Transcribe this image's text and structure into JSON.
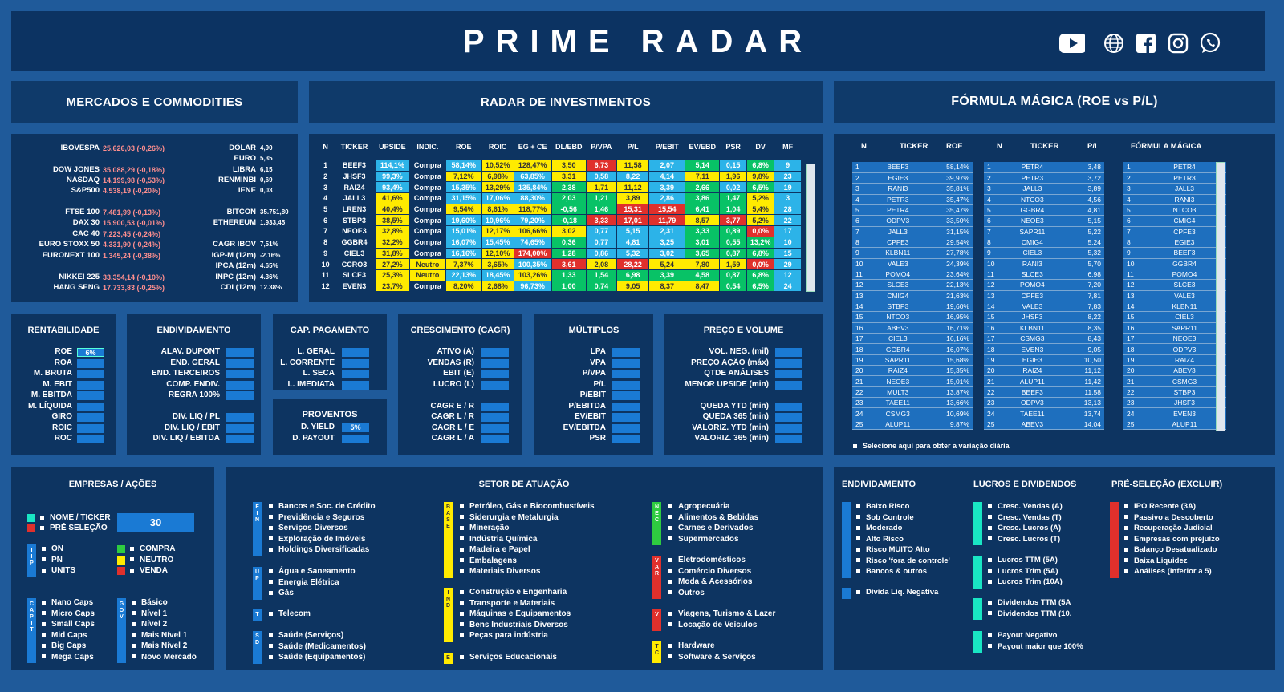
{
  "app_title": "PRIME RADAR",
  "social": [
    "youtube-icon",
    "globe-icon",
    "facebook-icon",
    "instagram-icon",
    "whatsapp-icon"
  ],
  "mercados": {
    "title": "MERCADOS E COMMODITIES",
    "indices": [
      {
        "name": "IBOVESPA",
        "val": "25.626,03 (-0,26%)"
      },
      {
        "name": "DOW JONES",
        "val": "35.088,29 (-0,18%)"
      },
      {
        "name": "NASDAQ",
        "val": "14.199,98 (-0,53%)"
      },
      {
        "name": "S&P500",
        "val": "4.538,19 (-0,20%)"
      },
      {
        "name": "FTSE 100",
        "val": "7.481,99 (-0,13%)"
      },
      {
        "name": "DAX 30",
        "val": "15.900,53 (-0,01%)"
      },
      {
        "name": "CAC 40",
        "val": "7.223,45 (-0,24%)"
      },
      {
        "name": "EURO STOXX 50",
        "val": "4.331,90 (-0,24%)"
      },
      {
        "name": "EURONEXT 100",
        "val": "1.345,24 (-0,38%)"
      },
      {
        "name": "NIKKEI 225",
        "val": "33.354,14 (-0,10%)"
      },
      {
        "name": "HANG SENG",
        "val": "17.733,83 (-0,25%)"
      }
    ],
    "rates": [
      {
        "name": "DÓLAR",
        "val": "4,90"
      },
      {
        "name": "EURO",
        "val": "5,35"
      },
      {
        "name": "LIBRA",
        "val": "6,15"
      },
      {
        "name": "RENMINBI",
        "val": "0,69"
      },
      {
        "name": "IENE",
        "val": "0,03"
      },
      {
        "name": "BITCON",
        "val": "35.751,80"
      },
      {
        "name": "ETHEREUM",
        "val": "1.933,45"
      },
      {
        "name": "CAGR IBOV",
        "val": "7,51%"
      },
      {
        "name": "IGP-M (12m)",
        "val": "-2.16%"
      },
      {
        "name": "IPCA (12m)",
        "val": "4.65%"
      },
      {
        "name": "INPC (12m)",
        "val": "4.36%"
      },
      {
        "name": "CDI (12m)",
        "val": "12.38%"
      }
    ]
  },
  "radar": {
    "title": "RADAR  DE INVESTIMENTOS",
    "headers": [
      "N",
      "TICKER",
      "UPSIDE",
      "INDIC.",
      "ROE",
      "ROIC",
      "EG + CE",
      "DL/EBD",
      "P/VPA",
      "P/L",
      "P/EBIT",
      "EV/EBD",
      "PSR",
      "DV",
      "MF"
    ],
    "rows": [
      [
        "1",
        "BEEF3",
        "114,1%",
        "Compra",
        "58,14%",
        "10,52%",
        "128,47%",
        "3,50",
        "6,73",
        "11,58",
        "2,07",
        "5,14",
        "0,15",
        "6,8%",
        "9"
      ],
      [
        "2",
        "JHSF3",
        "99,3%",
        "Compra",
        "7,12%",
        "6,98%",
        "63,85%",
        "3,31",
        "0,58",
        "8,22",
        "4,14",
        "7,11",
        "1,96",
        "9,8%",
        "23"
      ],
      [
        "3",
        "RAIZ4",
        "93,4%",
        "Compra",
        "15,35%",
        "13,29%",
        "135,84%",
        "2,38",
        "1,71",
        "11,12",
        "3,39",
        "2,66",
        "0,02",
        "6,5%",
        "19"
      ],
      [
        "4",
        "JALL3",
        "41,6%",
        "Compra",
        "31,15%",
        "17,06%",
        "88,30%",
        "2,03",
        "1,21",
        "3,89",
        "2,86",
        "3,86",
        "1,47",
        "5,2%",
        "3"
      ],
      [
        "5",
        "LREN3",
        "40,4%",
        "Compra",
        "9,54%",
        "8,61%",
        "118,77%",
        "-0,56",
        "1,46",
        "15,31",
        "15,54",
        "6,41",
        "1,04",
        "5,4%",
        "28"
      ],
      [
        "6",
        "STBP3",
        "38,5%",
        "Compra",
        "19,60%",
        "10,96%",
        "79,20%",
        "-0,18",
        "3,33",
        "17,01",
        "11,79",
        "8,57",
        "3,77",
        "5,2%",
        "22"
      ],
      [
        "7",
        "NEOE3",
        "32,8%",
        "Compra",
        "15,01%",
        "12,17%",
        "106,66%",
        "3,02",
        "0,77",
        "5,15",
        "2,31",
        "3,33",
        "0,89",
        "0,0%",
        "17"
      ],
      [
        "8",
        "GGBR4",
        "32,2%",
        "Compra",
        "16,07%",
        "15,45%",
        "74,65%",
        "0,36",
        "0,77",
        "4,81",
        "3,25",
        "3,01",
        "0,55",
        "13,2%",
        "10"
      ],
      [
        "9",
        "CIEL3",
        "31,8%",
        "Compra",
        "16,16%",
        "12,10%",
        "174,00%",
        "1,28",
        "0,86",
        "5,32",
        "3,02",
        "3,65",
        "0,87",
        "6,8%",
        "15"
      ],
      [
        "10",
        "CCRO3",
        "27,2%",
        "Neutro",
        "7,37%",
        "3,65%",
        "100,35%",
        "3,61",
        "2,08",
        "28,22",
        "5,24",
        "7,80",
        "1,59",
        "0,0%",
        "29"
      ],
      [
        "11",
        "SLCE3",
        "25,3%",
        "Neutro",
        "22,13%",
        "18,45%",
        "103,26%",
        "1,33",
        "1,54",
        "6,98",
        "3,39",
        "4,58",
        "0,87",
        "6,8%",
        "12"
      ],
      [
        "12",
        "EVEN3",
        "23,7%",
        "Compra",
        "8,20%",
        "2,68%",
        "96,73%",
        "1,00",
        "0,74",
        "9,05",
        "8,37",
        "8,47",
        "0,54",
        "6,5%",
        "24"
      ]
    ],
    "colors": [
      [
        "",
        "",
        "cy",
        "",
        "cy",
        "y",
        "y",
        "y",
        "r",
        "y",
        "cy",
        "g",
        "cy",
        "g",
        "cy"
      ],
      [
        "",
        "",
        "cy",
        "",
        "y",
        "y",
        "cy",
        "y",
        "cy",
        "cy",
        "cy",
        "y",
        "y",
        "y",
        "cy"
      ],
      [
        "",
        "",
        "cy",
        "",
        "cy",
        "y",
        "cy",
        "g",
        "y",
        "y",
        "cy",
        "g",
        "cy",
        "g",
        "cy"
      ],
      [
        "",
        "",
        "y",
        "",
        "cy",
        "cy",
        "cy",
        "g",
        "g",
        "y",
        "cy",
        "g",
        "g",
        "y",
        "cy"
      ],
      [
        "",
        "",
        "y",
        "",
        "y",
        "y",
        "y",
        "g",
        "g",
        "r",
        "r",
        "g",
        "g",
        "y",
        "cy"
      ],
      [
        "",
        "",
        "y",
        "",
        "cy",
        "cy",
        "cy",
        "g",
        "r",
        "r",
        "r",
        "y",
        "r",
        "y",
        "cy"
      ],
      [
        "",
        "",
        "y",
        "",
        "cy",
        "y",
        "y",
        "y",
        "cy",
        "cy",
        "cy",
        "g",
        "g",
        "r",
        "cy"
      ],
      [
        "",
        "",
        "y",
        "",
        "cy",
        "cy",
        "cy",
        "g",
        "cy",
        "cy",
        "cy",
        "g",
        "g",
        "g",
        "cy"
      ],
      [
        "",
        "",
        "y",
        "",
        "cy",
        "y",
        "r",
        "g",
        "cy",
        "cy",
        "cy",
        "g",
        "g",
        "g",
        "cy"
      ],
      [
        "",
        "",
        "y",
        "y",
        "y",
        "y",
        "cy",
        "r",
        "y",
        "r",
        "y",
        "y",
        "y",
        "r",
        "cy"
      ],
      [
        "",
        "",
        "y",
        "y",
        "cy",
        "cy",
        "y",
        "g",
        "g",
        "g",
        "g",
        "g",
        "g",
        "g",
        "cy"
      ],
      [
        "",
        "",
        "y",
        "",
        "y",
        "y",
        "cy",
        "g",
        "g",
        "y",
        "y",
        "y",
        "g",
        "g",
        "cy"
      ]
    ]
  },
  "formula": {
    "title": "FÓRMULA MÁGICA (ROE vs P/L)",
    "headers": [
      "N",
      "TICKER",
      "ROE",
      "N",
      "TICKER",
      "P/L",
      "FÓRMULA MÁGICA"
    ],
    "roe": [
      [
        "1",
        "BEEF3",
        "58,14%"
      ],
      [
        "2",
        "EGIE3",
        "39,97%"
      ],
      [
        "3",
        "RANI3",
        "35,81%"
      ],
      [
        "4",
        "PETR3",
        "35,47%"
      ],
      [
        "5",
        "PETR4",
        "35,47%"
      ],
      [
        "6",
        "ODPV3",
        "33,50%"
      ],
      [
        "7",
        "JALL3",
        "31,15%"
      ],
      [
        "8",
        "CPFE3",
        "29,54%"
      ],
      [
        "9",
        "KLBN11",
        "27,78%"
      ],
      [
        "10",
        "VALE3",
        "24,39%"
      ],
      [
        "11",
        "POMO4",
        "23,64%"
      ],
      [
        "12",
        "SLCE3",
        "22,13%"
      ],
      [
        "13",
        "CMIG4",
        "21,63%"
      ],
      [
        "14",
        "STBP3",
        "19,60%"
      ],
      [
        "15",
        "NTCO3",
        "16,95%"
      ],
      [
        "16",
        "ABEV3",
        "16,71%"
      ],
      [
        "17",
        "CIEL3",
        "16,16%"
      ],
      [
        "18",
        "GGBR4",
        "16,07%"
      ],
      [
        "19",
        "SAPR11",
        "15,68%"
      ],
      [
        "20",
        "RAIZ4",
        "15,35%"
      ],
      [
        "21",
        "NEOE3",
        "15,01%"
      ],
      [
        "22",
        "MULT3",
        "13,87%"
      ],
      [
        "23",
        "TAEE11",
        "13,66%"
      ],
      [
        "24",
        "CSMG3",
        "10,69%"
      ],
      [
        "25",
        "ALUP11",
        "9,87%"
      ]
    ],
    "pl": [
      [
        "1",
        "PETR4",
        "3,48"
      ],
      [
        "2",
        "PETR3",
        "3,72"
      ],
      [
        "3",
        "JALL3",
        "3,89"
      ],
      [
        "4",
        "NTCO3",
        "4,56"
      ],
      [
        "5",
        "GGBR4",
        "4,81"
      ],
      [
        "6",
        "NEOE3",
        "5,15"
      ],
      [
        "7",
        "SAPR11",
        "5,22"
      ],
      [
        "8",
        "CMIG4",
        "5,24"
      ],
      [
        "9",
        "CIEL3",
        "5,32"
      ],
      [
        "10",
        "RANI3",
        "5,70"
      ],
      [
        "11",
        "SLCE3",
        "6,98"
      ],
      [
        "12",
        "POMO4",
        "7,20"
      ],
      [
        "13",
        "CPFE3",
        "7,81"
      ],
      [
        "14",
        "VALE3",
        "7,83"
      ],
      [
        "15",
        "JHSF3",
        "8,22"
      ],
      [
        "16",
        "KLBN11",
        "8,35"
      ],
      [
        "17",
        "CSMG3",
        "8,43"
      ],
      [
        "18",
        "EVEN3",
        "9,05"
      ],
      [
        "19",
        "EGIE3",
        "10,50"
      ],
      [
        "20",
        "RAIZ4",
        "11,12"
      ],
      [
        "21",
        "ALUP11",
        "11,42"
      ],
      [
        "22",
        "BEEF3",
        "11,58"
      ],
      [
        "23",
        "ODPV3",
        "13,13"
      ],
      [
        "24",
        "TAEE11",
        "13,74"
      ],
      [
        "25",
        "ABEV3",
        "14,04"
      ]
    ],
    "mf": [
      [
        "1",
        "PETR4"
      ],
      [
        "2",
        "PETR3"
      ],
      [
        "3",
        "JALL3"
      ],
      [
        "4",
        "RANI3"
      ],
      [
        "5",
        "NTCO3"
      ],
      [
        "6",
        "CMIG4"
      ],
      [
        "7",
        "CPFE3"
      ],
      [
        "8",
        "EGIE3"
      ],
      [
        "9",
        "BEEF3"
      ],
      [
        "10",
        "GGBR4"
      ],
      [
        "11",
        "POMO4"
      ],
      [
        "12",
        "SLCE3"
      ],
      [
        "13",
        "VALE3"
      ],
      [
        "14",
        "KLBN11"
      ],
      [
        "15",
        "CIEL3"
      ],
      [
        "16",
        "SAPR11"
      ],
      [
        "17",
        "NEOE3"
      ],
      [
        "18",
        "ODPV3"
      ],
      [
        "19",
        "RAIZ4"
      ],
      [
        "20",
        "ABEV3"
      ],
      [
        "21",
        "CSMG3"
      ],
      [
        "22",
        "STBP3"
      ],
      [
        "23",
        "JHSF3"
      ],
      [
        "24",
        "EVEN3"
      ],
      [
        "25",
        "ALUP11"
      ]
    ],
    "note": "Selecione aqui para obter a variação diária"
  },
  "filters": {
    "rentabilidade": {
      "title": "RENTABILIDADE",
      "items": [
        "ROE",
        "ROA",
        "M. BRUTA",
        "M. EBIT",
        "M. EBITDA",
        "M. LÍQUIDA",
        "GIRO",
        "ROIC",
        "ROC"
      ],
      "roe_value": "6%"
    },
    "endividamento": {
      "title": "ENDIVIDAMENTO",
      "items": [
        "ALAV. DUPONT",
        "END. GERAL",
        "END. TERCEIROS",
        "COMP. ENDIV.",
        "REGRA 100%",
        "DIV. LIQ / PL",
        "DIV. LIQ / EBIT",
        "DIV. LIQ / EBITDA"
      ]
    },
    "cap_pagamento": {
      "title": "CAP. PAGAMENTO",
      "items": [
        "L. GERAL",
        "L. CORRENTE",
        "L. SECA",
        "L. IMEDIATA"
      ]
    },
    "proventos": {
      "title": "PROVENTOS",
      "items": [
        "D. YIELD",
        "D. PAYOUT"
      ],
      "dy_value": "5%"
    },
    "crescimento": {
      "title": "CRESCIMENTO (CAGR)",
      "items": [
        "ATIVO (A)",
        "VENDAS (R)",
        "EBIT (E)",
        "LUCRO (L)",
        "CAGR E / R",
        "CAGR L / R",
        "CAGR L / E",
        "CAGR L / A"
      ]
    },
    "multiplos": {
      "title": "MÚLTIPLOS",
      "items": [
        "LPA",
        "VPA",
        "P/VPA",
        "P/L",
        "P/EBIT",
        "P/EBITDA",
        "EV/EBIT",
        "EV/EBITDA",
        "PSR"
      ]
    },
    "preco_volume": {
      "title": "PREÇO E VOLUME",
      "items": [
        "VOL. NEG. (mil)",
        "PREÇO AÇÃO (máx)",
        "QTDE ANÁLISES",
        "MENOR UPSIDE (min)",
        "QUEDA YTD (min)",
        "QUEDA 365  (min)",
        "VALORIZ. YTD (min)",
        "VALORIZ. 365  (min)"
      ]
    }
  },
  "empresas": {
    "title": "EMPRESAS / AÇÕES",
    "nome_ticker": "NOME / TICKER",
    "pre_selecao": "PRÉ SELEÇÃO",
    "count": "30",
    "tipo": [
      "ON",
      "PN",
      "UNITS"
    ],
    "tipo_tag": "TIP",
    "indic": [
      "COMPRA",
      "NEUTRO",
      "VENDA"
    ],
    "cap": [
      "Nano Caps",
      "Micro Caps",
      "Small Caps",
      "Mid Caps",
      "Big Caps",
      "Mega Caps"
    ],
    "cap_tag": "CAPIT",
    "gov": [
      "Básico",
      "Nível 1",
      "Nível 2",
      "Mais Nível 1",
      "Mais Nível 2",
      "Novo Mercado"
    ],
    "gov_tag": "GOV"
  },
  "setor": {
    "title": "SETOR DE ATUAÇÃO",
    "fin": [
      "Bancos e Soc. de Crédito",
      "Previdência e Seguros",
      "Serviços Diversos",
      "Exploração de Imóveis",
      "Holdings Diversificadas"
    ],
    "fin_tag": "FIN",
    "up": [
      "Água e Saneamento",
      "Energia Elétrica",
      "Gás"
    ],
    "up_tag": "UP",
    "tel": [
      "Telecom"
    ],
    "tel_tag": "T",
    "sd": [
      "Saúde (Serviços)",
      "Saúde (Medicamentos)",
      "Saúde (Equipamentos)"
    ],
    "sd_tag": "SD",
    "base": [
      "Petróleo, Gás e Biocombustíveis",
      "Siderurgia e Metalurgia",
      "Mineração",
      "Indústria Química",
      "Madeira e Papel",
      "Embalagens",
      "Materiais Diversos"
    ],
    "base_tag": "BASE",
    "ind": [
      "Construção e Engenharia",
      "Transporte e Materiais",
      "Máquinas e Equipamentos",
      "Bens Industriais Diversos",
      "Peças para indústria"
    ],
    "ind_tag": "IND",
    "e": [
      "Serviços Educacionais"
    ],
    "e_tag": "E",
    "nec": [
      "Agropecuária",
      "Alimentos & Bebidas",
      "Carnes e Derivados",
      "Supermercados"
    ],
    "nec_tag": "NEC",
    "var": [
      "Eletrodomésticos",
      "Comércio Diversos",
      "Moda & Acessórios",
      "Outros"
    ],
    "var_tag": "VAR",
    "v": [
      "Viagens, Turismo & Lazer",
      "Locação de Veículos"
    ],
    "v_tag": "V",
    "tc": [
      "Hardware",
      "Software & Serviços"
    ],
    "tc_tag": "TC"
  },
  "endiv2": {
    "title": "ENDIVIDAMENTO",
    "items": [
      "Baixo Risco",
      "Sob Controle",
      "Moderado",
      "Alto Risco",
      "Risco MUITO Alto",
      "Risco 'fora de controle'",
      "Bancos & outros"
    ],
    "extra": "Dívida Liq. Negativa"
  },
  "lucros": {
    "title": "LUCROS E DIVIDENDOS",
    "g1": [
      "Cresc. Vendas (A)",
      "Cresc. Vendas (T)",
      "Cresc. Lucros (A)",
      "Cresc. Lucros (T)"
    ],
    "g2": [
      "Lucros TTM (5A)",
      "Lucros Trim (5A)",
      "Lucros Trim (10A)"
    ],
    "g3": [
      "Dividendos TTM (5A",
      "Dividendos TTM (10."
    ],
    "g4": [
      "Payout Negativo",
      "Payout maior que 100%"
    ]
  },
  "presel": {
    "title": "PRÉ-SELEÇÃO (EXCLUIR)",
    "items": [
      "IPO Recente (3A)",
      "Passivo a Descoberto",
      "Recuperação Judicial",
      "Empresas com prejuízo",
      "Balanço Desatualizado",
      "Baixa Liquidez",
      "Análises (inferior a 5)"
    ]
  }
}
